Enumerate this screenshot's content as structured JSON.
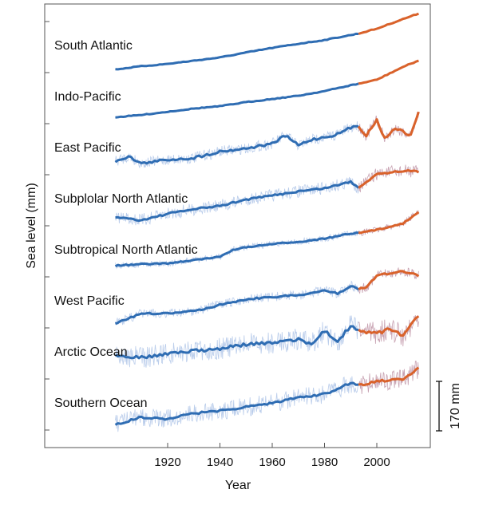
{
  "chart_data": {
    "type": "line",
    "title": "",
    "xlabel": "Year",
    "ylabel": "Sea level (mm)",
    "xlim": [
      1899,
      2020
    ],
    "x_ticks": [
      "1920",
      "1940",
      "1960",
      "1980",
      "2000"
    ],
    "scale_bar_label": "170 mm",
    "scale_bar_mm": 170,
    "grid": false,
    "colors": {
      "reconstruction": "#2f6db3",
      "altimetry": "#d9622b",
      "annual_blue": "#a9c1e6",
      "annual_orange": "#b98a9e"
    },
    "altimetry_start_year": 1993,
    "series": [
      {
        "name": "South Atlantic",
        "years": [
          1900,
          1910,
          1920,
          1930,
          1940,
          1950,
          1960,
          1970,
          1980,
          1990,
          1993,
          2000,
          2010,
          2016
        ],
        "values": [
          0,
          11,
          19,
          30,
          41,
          58,
          74,
          88,
          101,
          118,
          123,
          140,
          173,
          192
        ]
      },
      {
        "name": "Indo-Pacific",
        "years": [
          1900,
          1910,
          1920,
          1930,
          1940,
          1950,
          1960,
          1970,
          1980,
          1990,
          1993,
          2000,
          2010,
          2016
        ],
        "values": [
          0,
          8,
          19,
          30,
          38,
          52,
          63,
          74,
          90,
          110,
          115,
          129,
          173,
          195
        ]
      },
      {
        "name": "East Pacific",
        "years": [
          1900,
          1905,
          1910,
          1920,
          1930,
          1940,
          1950,
          1960,
          1965,
          1970,
          1975,
          1980,
          1985,
          1990,
          1993,
          1996,
          2000,
          2003,
          2007,
          2010,
          2013,
          2016
        ],
        "values": [
          0,
          16,
          -8,
          5,
          11,
          33,
          44,
          60,
          88,
          55,
          74,
          82,
          93,
          115,
          121,
          88,
          142,
          77,
          115,
          101,
          88,
          170
        ]
      },
      {
        "name": "Subplolar North Atlantic",
        "years": [
          1900,
          1910,
          1920,
          1930,
          1940,
          1950,
          1960,
          1970,
          1980,
          1990,
          1993,
          2000,
          2010,
          2016
        ],
        "values": [
          0,
          -11,
          11,
          27,
          38,
          60,
          74,
          88,
          99,
          121,
          101,
          148,
          159,
          156
        ]
      },
      {
        "name": "Subtropical North Atlantic",
        "years": [
          1900,
          1910,
          1920,
          1930,
          1940,
          1945,
          1950,
          1960,
          1970,
          1980,
          1990,
          1993,
          2000,
          2010,
          2016
        ],
        "values": [
          0,
          5,
          8,
          19,
          30,
          55,
          63,
          74,
          82,
          93,
          110,
          112,
          123,
          145,
          186
        ]
      },
      {
        "name": "West Pacific",
        "years": [
          1900,
          1910,
          1920,
          1930,
          1940,
          1950,
          1960,
          1970,
          1980,
          1985,
          1990,
          1993,
          1996,
          2000,
          2010,
          2016
        ],
        "values": [
          0,
          33,
          33,
          41,
          63,
          82,
          90,
          96,
          112,
          101,
          129,
          118,
          123,
          164,
          178,
          164
        ]
      },
      {
        "name": "Arctic Ocean",
        "years": [
          1900,
          1910,
          1920,
          1930,
          1940,
          1950,
          1960,
          1970,
          1975,
          1980,
          1985,
          1990,
          1993,
          2000,
          2005,
          2010,
          2016
        ],
        "values": [
          0,
          -8,
          5,
          14,
          22,
          36,
          41,
          55,
          36,
          82,
          47,
          101,
          82,
          74,
          90,
          68,
          137
        ]
      },
      {
        "name": "Southern Ocean",
        "years": [
          1900,
          1910,
          1920,
          1930,
          1940,
          1950,
          1960,
          1970,
          1980,
          1990,
          1993,
          2000,
          2010,
          2016
        ],
        "values": [
          0,
          25,
          19,
          38,
          47,
          60,
          74,
          93,
          104,
          142,
          134,
          148,
          156,
          192
        ]
      }
    ]
  }
}
